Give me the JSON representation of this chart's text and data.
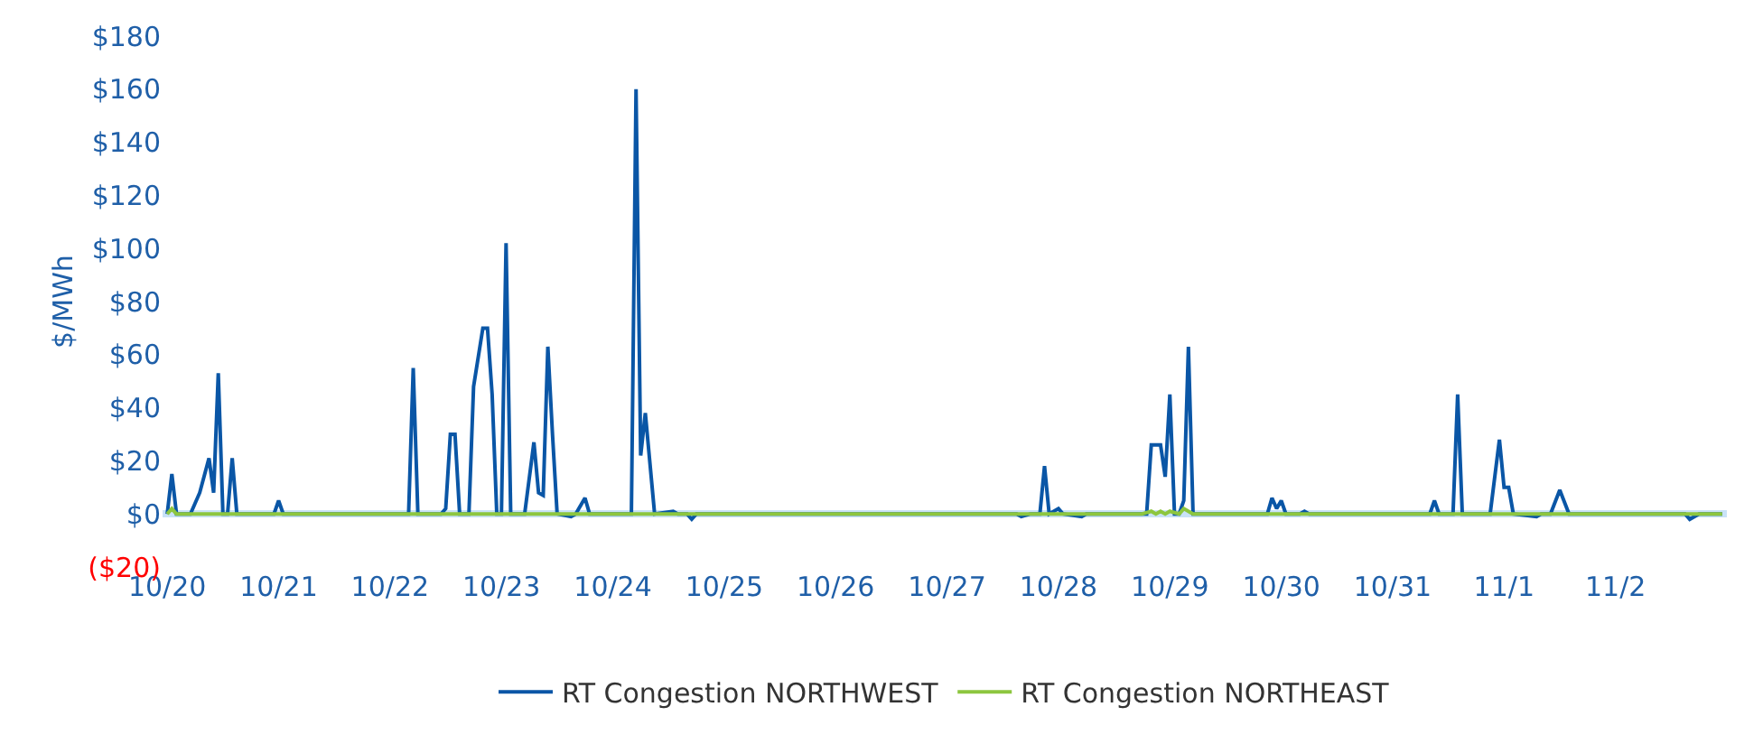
{
  "chart_data": {
    "type": "line",
    "ylabel": "$/MWh",
    "xlim": [
      "--10-19T23:00",
      "--11-03T00:00"
    ],
    "xticks": [
      {
        "value": "--10-20",
        "label": "10/20"
      },
      {
        "value": "--10-21",
        "label": "10/21"
      },
      {
        "value": "--10-22",
        "label": "10/22"
      },
      {
        "value": "--10-23",
        "label": "10/23"
      },
      {
        "value": "--10-24",
        "label": "10/24"
      },
      {
        "value": "--10-25",
        "label": "10/25"
      },
      {
        "value": "--10-26",
        "label": "10/26"
      },
      {
        "value": "--10-27",
        "label": "10/27"
      },
      {
        "value": "--10-28",
        "label": "10/28"
      },
      {
        "value": "--10-29",
        "label": "10/29"
      },
      {
        "value": "--10-30",
        "label": "10/30"
      },
      {
        "value": "--10-31",
        "label": "10/31"
      },
      {
        "value": "--11-01",
        "label": "11/1"
      },
      {
        "value": "--11-02",
        "label": "11/2"
      }
    ],
    "ylim": [
      -20,
      180
    ],
    "yticks": [
      {
        "value": -20,
        "label": "($20)"
      },
      {
        "value": 0,
        "label": "$0"
      },
      {
        "value": 20,
        "label": "$20"
      },
      {
        "value": 40,
        "label": "$40"
      },
      {
        "value": 60,
        "label": "$60"
      },
      {
        "value": 80,
        "label": "$80"
      },
      {
        "value": 100,
        "label": "$100"
      },
      {
        "value": 120,
        "label": "$120"
      },
      {
        "value": 140,
        "label": "$140"
      },
      {
        "value": 160,
        "label": "$160"
      },
      {
        "value": 180,
        "label": "$180"
      }
    ],
    "grid": false,
    "legend": "bottom",
    "marker": "none",
    "line_style": "solid",
    "series": [
      {
        "name": "RT Congestion NORTHWEST",
        "color": "#0a56a6",
        "x": [
          "--10-20T00:00",
          "--10-20T01:00",
          "--10-20T02:00",
          "--10-20T05:00",
          "--10-20T07:00",
          "--10-20T09:00",
          "--10-20T10:00",
          "--10-20T11:00",
          "--10-20T12:00",
          "--10-20T13:00",
          "--10-20T14:00",
          "--10-20T15:00",
          "--10-20T23:00",
          "--10-21T00:00",
          "--10-21T01:00",
          "--10-22T04:00",
          "--10-22T05:00",
          "--10-22T06:00",
          "--10-22T11:00",
          "--10-22T12:00",
          "--10-22T13:00",
          "--10-22T14:00",
          "--10-22T15:00",
          "--10-22T17:00",
          "--10-22T18:00",
          "--10-22T20:00",
          "--10-22T21:00",
          "--10-22T22:00",
          "--10-22T23:00",
          "--10-23T00:00",
          "--10-23T01:00",
          "--10-23T02:00",
          "--10-23T05:00",
          "--10-23T07:00",
          "--10-23T08:00",
          "--10-23T09:00",
          "--10-23T10:00",
          "--10-23T11:00",
          "--10-23T12:00",
          "--10-23T15:00",
          "--10-23T16:00",
          "--10-23T18:00",
          "--10-23T19:00",
          "--10-24T04:00",
          "--10-24T05:00",
          "--10-24T06:00",
          "--10-24T07:00",
          "--10-24T09:00",
          "--10-24T13:00",
          "--10-24T14:00",
          "--10-24T16:00",
          "--10-24T17:00",
          "--10-24T18:00",
          "--10-27T15:00",
          "--10-27T16:00",
          "--10-27T18:00",
          "--10-27T20:00",
          "--10-27T21:00",
          "--10-27T22:00",
          "--10-28T00:00",
          "--10-28T01:00",
          "--10-28T05:00",
          "--10-28T06:00",
          "--10-28T19:00",
          "--10-28T20:00",
          "--10-28T22:00",
          "--10-28T23:00",
          "--10-29T00:00",
          "--10-29T01:00",
          "--10-29T02:00",
          "--10-29T03:00",
          "--10-29T04:00",
          "--10-29T05:00",
          "--10-29T21:00",
          "--10-29T22:00",
          "--10-29T23:00",
          "--10-30T00:00",
          "--10-30T01:00",
          "--10-30T04:00",
          "--10-30T05:00",
          "--10-30T06:00",
          "--10-31T08:00",
          "--10-31T09:00",
          "--10-31T10:00",
          "--10-31T13:00",
          "--10-31T14:00",
          "--10-31T15:00",
          "--10-31T21:00",
          "--10-31T23:00",
          "--11-01T00:00",
          "--11-01T01:00",
          "--11-01T02:00",
          "--11-01T07:00",
          "--11-01T08:00",
          "--11-01T10:00",
          "--11-01T12:00",
          "--11-01T14:00",
          "--11-02T15:00",
          "--11-02T16:00",
          "--11-02T18:00",
          "--11-02T23:00"
        ],
        "values": [
          0,
          15,
          0,
          0,
          8,
          21,
          8,
          53,
          0,
          0,
          21,
          0,
          0,
          5,
          0,
          0,
          55,
          0,
          0,
          2,
          30,
          30,
          0,
          0,
          48,
          70,
          70,
          45,
          0,
          0,
          102,
          0,
          0,
          27,
          8,
          7,
          63,
          30,
          0,
          -1,
          0,
          6,
          0,
          0,
          160,
          22,
          38,
          0,
          1,
          0,
          0,
          -2,
          0,
          0,
          -1,
          0,
          0,
          18,
          0,
          2,
          0,
          -1,
          0,
          0,
          26,
          26,
          14,
          45,
          0,
          0,
          5,
          63,
          0,
          0,
          6,
          2,
          5,
          0,
          0,
          1,
          0,
          0,
          5,
          0,
          0,
          45,
          0,
          0,
          28,
          10,
          10,
          0,
          -1,
          0,
          0,
          9,
          0,
          0,
          -2,
          0,
          0
        ]
      },
      {
        "name": "RT Congestion NORTHEAST",
        "color": "#8dc63f",
        "x": [
          "--10-20T00:00",
          "--10-20T01:00",
          "--10-20T02:00",
          "--10-28T18:00",
          "--10-28T20:00",
          "--10-28T21:00",
          "--10-28T22:00",
          "--10-28T23:00",
          "--10-29T00:00",
          "--10-29T02:00",
          "--10-29T03:00",
          "--10-29T04:00",
          "--10-29T05:00",
          "--11-02T23:00"
        ],
        "values": [
          0,
          2,
          0,
          0,
          1,
          0,
          1,
          0,
          1,
          0,
          2,
          1,
          0,
          0
        ]
      }
    ]
  }
}
